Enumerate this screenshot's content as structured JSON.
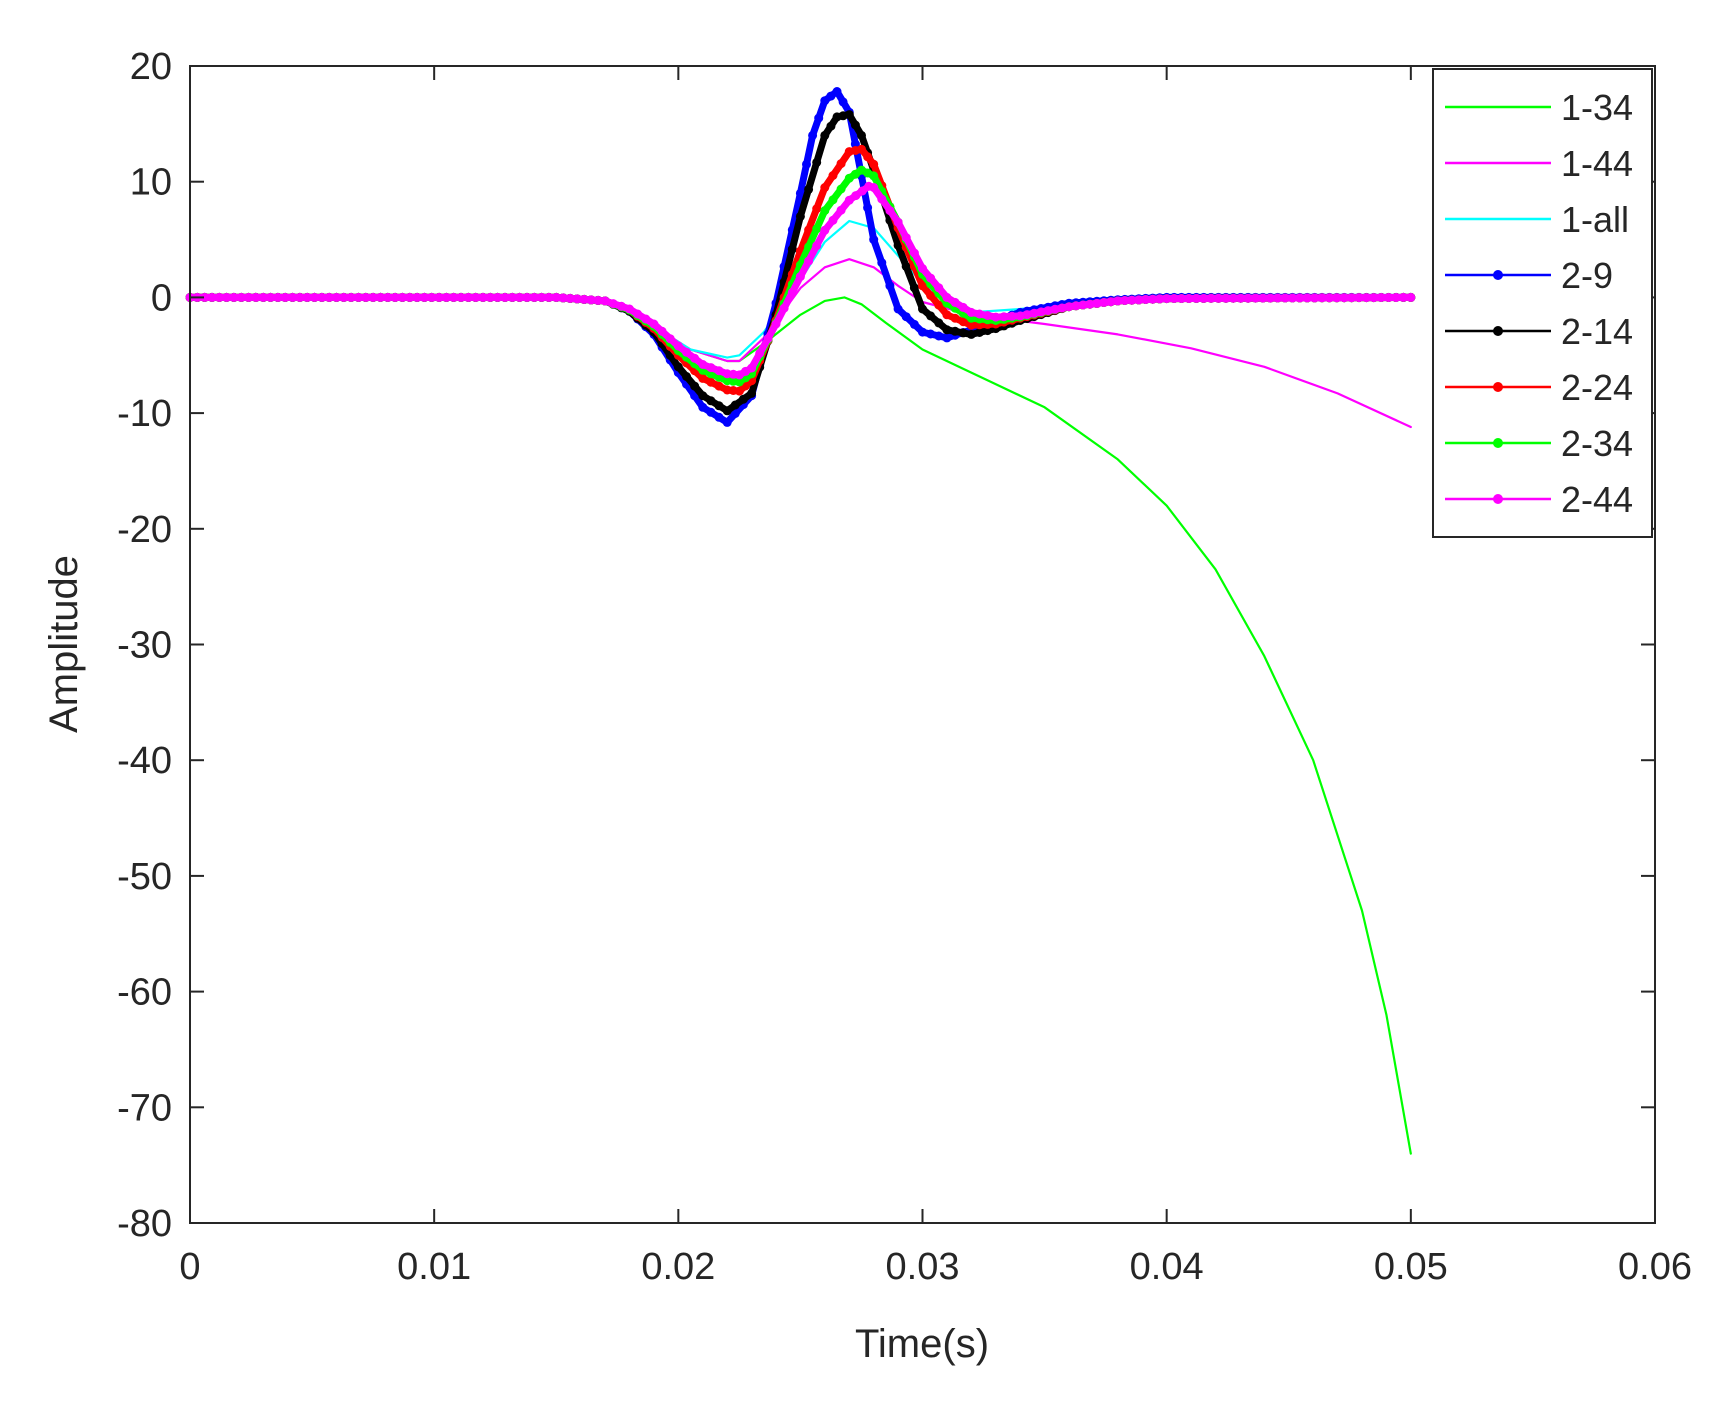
{
  "chart_data": {
    "type": "line",
    "title": "",
    "xlabel": "Time(s)",
    "ylabel": "Amplitude",
    "xlim": [
      0,
      0.06
    ],
    "ylim": [
      -80,
      20
    ],
    "xticks": [
      0,
      0.01,
      0.02,
      0.03,
      0.04,
      0.05,
      0.06
    ],
    "xtick_labels": [
      "0",
      "0.01",
      "0.02",
      "0.03",
      "0.04",
      "0.05",
      "0.06"
    ],
    "yticks": [
      20,
      10,
      0,
      -10,
      -20,
      -30,
      -40,
      -50,
      -60,
      -70,
      -80
    ],
    "ytick_labels": [
      "20",
      "10",
      "0",
      "-10",
      "-20",
      "-30",
      "-40",
      "-50",
      "-60",
      "-70",
      "-80"
    ],
    "grid": false,
    "legend_position": "top-right",
    "series": [
      {
        "name": "1-34",
        "color": "#00ff00",
        "marker": false,
        "x": [
          0,
          0.015,
          0.017,
          0.019,
          0.0205,
          0.022,
          0.0225,
          0.0235,
          0.025,
          0.026,
          0.0268,
          0.0275,
          0.0285,
          0.03,
          0.032,
          0.035,
          0.038,
          0.04,
          0.042,
          0.044,
          0.046,
          0.048,
          0.049,
          0.05
        ],
        "y": [
          0,
          0,
          -0.3,
          -2.5,
          -4.5,
          -5.5,
          -5.5,
          -4,
          -1.5,
          -0.3,
          0,
          -0.6,
          -2.2,
          -4.5,
          -6.5,
          -9.5,
          -14,
          -18,
          -23.5,
          -31,
          -40,
          -53,
          -62,
          -74
        ]
      },
      {
        "name": "1-44",
        "color": "#ff00ff",
        "marker": false,
        "x": [
          0,
          0.015,
          0.017,
          0.019,
          0.0205,
          0.022,
          0.0225,
          0.0235,
          0.025,
          0.026,
          0.027,
          0.028,
          0.029,
          0.03,
          0.032,
          0.035,
          0.038,
          0.041,
          0.044,
          0.047,
          0.05
        ],
        "y": [
          0,
          0,
          -0.3,
          -2.5,
          -4.5,
          -5.5,
          -5.5,
          -3.5,
          0.8,
          2.6,
          3.3,
          2.6,
          1.0,
          -0.4,
          -1.5,
          -2.3,
          -3.2,
          -4.4,
          -6,
          -8.3,
          -11.2
        ]
      },
      {
        "name": "1-all",
        "color": "#00ffff",
        "marker": false,
        "x": [
          0,
          0.015,
          0.017,
          0.019,
          0.0205,
          0.022,
          0.0225,
          0.0235,
          0.025,
          0.026,
          0.027,
          0.028,
          0.029,
          0.03,
          0.031,
          0.032,
          0.034,
          0.036,
          0.038,
          0.04,
          0.05
        ],
        "y": [
          0,
          0,
          -0.3,
          -2.5,
          -4.5,
          -5.2,
          -5.0,
          -3,
          1.5,
          4.8,
          6.6,
          6.0,
          3.6,
          1.2,
          -0.5,
          -1.3,
          -1.0,
          -0.6,
          -0.3,
          -0.1,
          0
        ]
      },
      {
        "name": "2-9",
        "color": "#0000ff",
        "marker": true,
        "x": [
          0,
          0.015,
          0.017,
          0.018,
          0.019,
          0.02,
          0.021,
          0.022,
          0.023,
          0.024,
          0.025,
          0.0255,
          0.026,
          0.0265,
          0.027,
          0.0275,
          0.028,
          0.029,
          0.03,
          0.031,
          0.032,
          0.033,
          0.034,
          0.036,
          0.038,
          0.04,
          0.05
        ],
        "y": [
          0,
          0,
          -0.3,
          -1.2,
          -3.2,
          -6.5,
          -9.5,
          -10.8,
          -8.5,
          -0.5,
          9,
          14,
          17,
          17.8,
          16,
          10.5,
          5,
          -1,
          -3,
          -3.5,
          -2.8,
          -2,
          -1.3,
          -0.5,
          -0.2,
          0,
          0
        ]
      },
      {
        "name": "2-14",
        "color": "#000000",
        "marker": true,
        "x": [
          0,
          0.015,
          0.017,
          0.018,
          0.019,
          0.02,
          0.021,
          0.022,
          0.023,
          0.024,
          0.025,
          0.026,
          0.0265,
          0.027,
          0.0275,
          0.028,
          0.029,
          0.03,
          0.031,
          0.032,
          0.033,
          0.034,
          0.036,
          0.038,
          0.04,
          0.05
        ],
        "y": [
          0,
          0,
          -0.3,
          -1.2,
          -3,
          -6,
          -8.5,
          -9.8,
          -8.3,
          -1.5,
          7,
          14,
          15.6,
          15.8,
          14,
          11,
          4.5,
          -1,
          -2.8,
          -3.2,
          -2.7,
          -2,
          -0.8,
          -0.3,
          -0.1,
          0
        ]
      },
      {
        "name": "2-24",
        "color": "#ff0000",
        "marker": true,
        "x": [
          0,
          0.015,
          0.017,
          0.018,
          0.019,
          0.02,
          0.021,
          0.022,
          0.0225,
          0.023,
          0.024,
          0.025,
          0.026,
          0.027,
          0.0275,
          0.028,
          0.029,
          0.03,
          0.031,
          0.032,
          0.033,
          0.034,
          0.036,
          0.038,
          0.04,
          0.05
        ],
        "y": [
          0,
          0,
          -0.3,
          -1.1,
          -2.7,
          -5,
          -7,
          -8,
          -8.1,
          -7.2,
          -2,
          4,
          9.5,
          12.6,
          12.8,
          11.5,
          6,
          1,
          -1.5,
          -2.4,
          -2.3,
          -1.8,
          -0.8,
          -0.3,
          -0.1,
          0
        ]
      },
      {
        "name": "2-34",
        "color": "#00ff00",
        "marker": true,
        "x": [
          0,
          0.015,
          0.017,
          0.018,
          0.019,
          0.02,
          0.021,
          0.022,
          0.0225,
          0.023,
          0.024,
          0.025,
          0.026,
          0.027,
          0.0275,
          0.028,
          0.029,
          0.03,
          0.031,
          0.032,
          0.033,
          0.034,
          0.036,
          0.038,
          0.04,
          0.05
        ],
        "y": [
          0,
          0,
          -0.3,
          -1.1,
          -2.5,
          -4.6,
          -6.3,
          -7.2,
          -7.3,
          -6.6,
          -2.2,
          2.8,
          7.5,
          10.3,
          11,
          10.5,
          6.5,
          2,
          -0.5,
          -1.8,
          -2.0,
          -1.7,
          -0.8,
          -0.3,
          -0.1,
          0
        ]
      },
      {
        "name": "2-44",
        "color": "#ff00ff",
        "marker": true,
        "x": [
          0,
          0.015,
          0.017,
          0.018,
          0.019,
          0.02,
          0.021,
          0.022,
          0.0225,
          0.023,
          0.024,
          0.025,
          0.026,
          0.027,
          0.0278,
          0.028,
          0.029,
          0.03,
          0.031,
          0.032,
          0.033,
          0.034,
          0.036,
          0.038,
          0.04,
          0.05
        ],
        "y": [
          0,
          0,
          -0.3,
          -1,
          -2.3,
          -4.2,
          -5.8,
          -6.6,
          -6.7,
          -6.1,
          -2.3,
          1.8,
          5.8,
          8.4,
          9.6,
          9.5,
          6.5,
          2.5,
          0,
          -1.3,
          -1.7,
          -1.6,
          -0.8,
          -0.3,
          -0.1,
          0
        ]
      }
    ]
  }
}
